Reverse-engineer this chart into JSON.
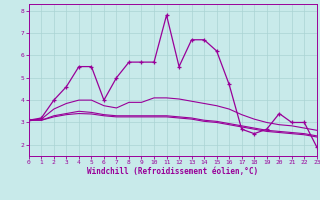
{
  "xlabel": "Windchill (Refroidissement éolien,°C)",
  "bg_color": "#c8eaea",
  "grid_color": "#aad4d4",
  "line_color": "#990099",
  "xmin": 0,
  "xmax": 23,
  "ymin": 1.5,
  "ymax": 8.3,
  "yticks": [
    2,
    3,
    4,
    5,
    6,
    7,
    8
  ],
  "xticks": [
    0,
    1,
    2,
    3,
    4,
    5,
    6,
    7,
    8,
    9,
    10,
    11,
    12,
    13,
    14,
    15,
    16,
    17,
    18,
    19,
    20,
    21,
    22,
    23
  ],
  "series_main": [
    3.1,
    3.2,
    4.0,
    4.6,
    5.5,
    5.5,
    4.0,
    5.0,
    5.7,
    5.7,
    5.7,
    7.8,
    5.5,
    6.7,
    6.7,
    6.2,
    4.7,
    2.7,
    2.5,
    2.7,
    3.4,
    3.0,
    3.0,
    1.9
  ],
  "series_smooth": [
    [
      3.1,
      3.15,
      3.6,
      3.85,
      4.0,
      4.0,
      3.75,
      3.65,
      3.9,
      3.9,
      4.1,
      4.1,
      4.05,
      3.95,
      3.85,
      3.75,
      3.6,
      3.35,
      3.15,
      3.0,
      2.9,
      2.85,
      2.75,
      2.65
    ],
    [
      3.1,
      3.1,
      3.3,
      3.4,
      3.5,
      3.45,
      3.35,
      3.3,
      3.3,
      3.3,
      3.3,
      3.3,
      3.25,
      3.2,
      3.1,
      3.05,
      2.95,
      2.85,
      2.75,
      2.65,
      2.6,
      2.55,
      2.5,
      2.4
    ],
    [
      3.1,
      3.1,
      3.25,
      3.35,
      3.4,
      3.38,
      3.3,
      3.25,
      3.25,
      3.25,
      3.25,
      3.25,
      3.2,
      3.15,
      3.05,
      3.0,
      2.9,
      2.8,
      2.7,
      2.6,
      2.55,
      2.5,
      2.45,
      2.35
    ]
  ]
}
